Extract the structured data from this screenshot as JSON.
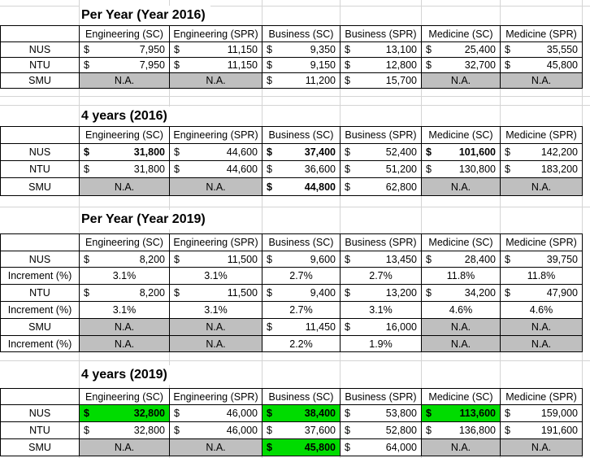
{
  "currency_symbol": "$",
  "na_label": "N.A.",
  "colors": {
    "na_fill": "#BFBFBF",
    "highlight_green": "#00DC00",
    "table_border": "#000000",
    "gridline": "#D4D4D4"
  },
  "columns": [
    "Engineering (SC)",
    "Engineering (SPR)",
    "Business (SC)",
    "Business (SPR)",
    "Medicine (SC)",
    "Medicine (SPR)"
  ],
  "tables": [
    {
      "title": "Per Year (Year 2016)",
      "rows": [
        {
          "label": "NUS",
          "cells": [
            {
              "k": "money",
              "v": "7,950"
            },
            {
              "k": "money",
              "v": "11,150"
            },
            {
              "k": "money",
              "v": "9,350"
            },
            {
              "k": "money",
              "v": "13,100"
            },
            {
              "k": "money",
              "v": "25,400"
            },
            {
              "k": "money",
              "v": "35,550"
            }
          ]
        },
        {
          "label": "NTU",
          "cells": [
            {
              "k": "money",
              "v": "7,950"
            },
            {
              "k": "money",
              "v": "11,150"
            },
            {
              "k": "money",
              "v": "9,150"
            },
            {
              "k": "money",
              "v": "12,800"
            },
            {
              "k": "money",
              "v": "32,700"
            },
            {
              "k": "money",
              "v": "45,800"
            }
          ]
        },
        {
          "label": "SMU",
          "cells": [
            {
              "k": "na"
            },
            {
              "k": "na"
            },
            {
              "k": "money",
              "v": "11,200"
            },
            {
              "k": "money",
              "v": "15,700"
            },
            {
              "k": "na"
            },
            {
              "k": "na"
            }
          ]
        }
      ]
    },
    {
      "title": "4 years (2016)",
      "rows": [
        {
          "label": "NUS",
          "cells": [
            {
              "k": "money",
              "v": "31,800",
              "bold": true
            },
            {
              "k": "money",
              "v": "44,600"
            },
            {
              "k": "money",
              "v": "37,400",
              "bold": true
            },
            {
              "k": "money",
              "v": "52,400"
            },
            {
              "k": "money",
              "v": "101,600",
              "bold": true
            },
            {
              "k": "money",
              "v": "142,200"
            }
          ]
        },
        {
          "label": "NTU",
          "cells": [
            {
              "k": "money",
              "v": "31,800"
            },
            {
              "k": "money",
              "v": "44,600"
            },
            {
              "k": "money",
              "v": "36,600"
            },
            {
              "k": "money",
              "v": "51,200"
            },
            {
              "k": "money",
              "v": "130,800"
            },
            {
              "k": "money",
              "v": "183,200"
            }
          ]
        },
        {
          "label": "SMU",
          "cells": [
            {
              "k": "na"
            },
            {
              "k": "na"
            },
            {
              "k": "money",
              "v": "44,800",
              "bold": true
            },
            {
              "k": "money",
              "v": "62,800"
            },
            {
              "k": "na"
            },
            {
              "k": "na"
            }
          ]
        }
      ]
    },
    {
      "title": "Per Year (Year 2019)",
      "rows": [
        {
          "label": "NUS",
          "cells": [
            {
              "k": "money",
              "v": "8,200"
            },
            {
              "k": "money",
              "v": "11,500"
            },
            {
              "k": "money",
              "v": "9,600"
            },
            {
              "k": "money",
              "v": "13,450"
            },
            {
              "k": "money",
              "v": "28,400"
            },
            {
              "k": "money",
              "v": "39,750"
            }
          ]
        },
        {
          "label": "Increment (%)",
          "cells": [
            {
              "k": "pct",
              "v": "3.1%"
            },
            {
              "k": "pct",
              "v": "3.1%"
            },
            {
              "k": "pct",
              "v": "2.7%"
            },
            {
              "k": "pct",
              "v": "2.7%"
            },
            {
              "k": "pct",
              "v": "11.8%"
            },
            {
              "k": "pct",
              "v": "11.8%"
            }
          ]
        },
        {
          "label": "NTU",
          "cells": [
            {
              "k": "money",
              "v": "8,200"
            },
            {
              "k": "money",
              "v": "11,500"
            },
            {
              "k": "money",
              "v": "9,400"
            },
            {
              "k": "money",
              "v": "13,200"
            },
            {
              "k": "money",
              "v": "34,200"
            },
            {
              "k": "money",
              "v": "47,900"
            }
          ]
        },
        {
          "label": "Increment (%)",
          "cells": [
            {
              "k": "pct",
              "v": "3.1%"
            },
            {
              "k": "pct",
              "v": "3.1%"
            },
            {
              "k": "pct",
              "v": "2.7%"
            },
            {
              "k": "pct",
              "v": "3.1%"
            },
            {
              "k": "pct",
              "v": "4.6%"
            },
            {
              "k": "pct",
              "v": "4.6%"
            }
          ]
        },
        {
          "label": "SMU",
          "cells": [
            {
              "k": "na"
            },
            {
              "k": "na"
            },
            {
              "k": "money",
              "v": "11,450"
            },
            {
              "k": "money",
              "v": "16,000"
            },
            {
              "k": "na"
            },
            {
              "k": "na"
            }
          ]
        },
        {
          "label": "Increment (%)",
          "cells": [
            {
              "k": "na"
            },
            {
              "k": "na"
            },
            {
              "k": "pct",
              "v": "2.2%"
            },
            {
              "k": "pct",
              "v": "1.9%"
            },
            {
              "k": "na"
            },
            {
              "k": "na"
            }
          ]
        }
      ]
    },
    {
      "title": "4 years (2019)",
      "rows": [
        {
          "label": "NUS",
          "cells": [
            {
              "k": "money",
              "v": "32,800",
              "bold": true,
              "green": true
            },
            {
              "k": "money",
              "v": "46,000"
            },
            {
              "k": "money",
              "v": "38,400",
              "bold": true,
              "green": true
            },
            {
              "k": "money",
              "v": "53,800"
            },
            {
              "k": "money",
              "v": "113,600",
              "bold": true,
              "green": true
            },
            {
              "k": "money",
              "v": "159,000"
            }
          ]
        },
        {
          "label": "NTU",
          "cells": [
            {
              "k": "money",
              "v": "32,800"
            },
            {
              "k": "money",
              "v": "46,000"
            },
            {
              "k": "money",
              "v": "37,600"
            },
            {
              "k": "money",
              "v": "52,800"
            },
            {
              "k": "money",
              "v": "136,800"
            },
            {
              "k": "money",
              "v": "191,600"
            }
          ]
        },
        {
          "label": "SMU",
          "cells": [
            {
              "k": "na"
            },
            {
              "k": "na"
            },
            {
              "k": "money",
              "v": "45,800",
              "bold": true,
              "green": true
            },
            {
              "k": "money",
              "v": "64,000"
            },
            {
              "k": "na"
            },
            {
              "k": "na"
            }
          ]
        }
      ]
    }
  ]
}
